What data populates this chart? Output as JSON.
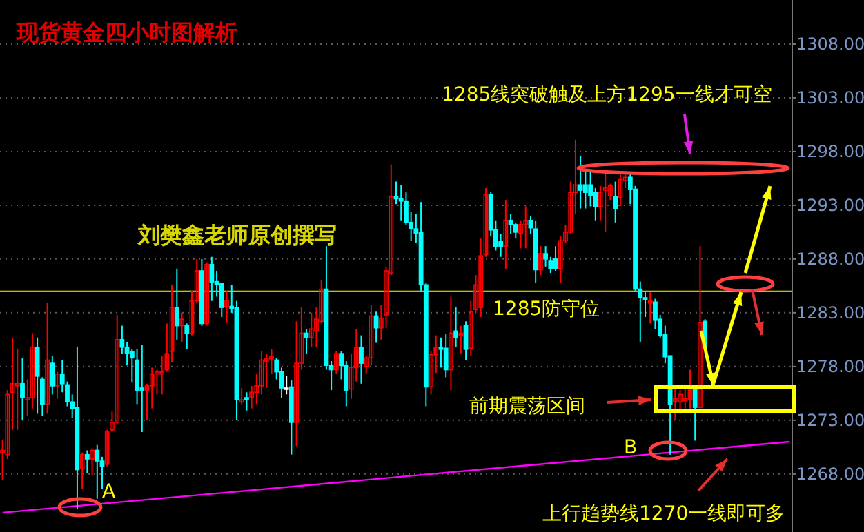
{
  "chart_data": {
    "type": "candlestick",
    "title": "现货黄金四小时图解析",
    "annotations": [
      "刘樊鑫老师原创撰写",
      "1285线突破触及上方1295一线才可空",
      "前期震荡区间",
      "上行趋势线1270一线即可多",
      "A",
      "B"
    ],
    "categories": [
      null,
      null,
      null,
      null,
      null,
      null,
      null,
      null,
      null,
      null,
      null,
      null,
      null,
      null,
      null,
      null,
      null,
      null,
      null,
      null,
      null,
      null,
      null,
      null,
      null,
      null,
      null,
      null,
      null,
      null,
      null,
      null,
      null,
      null,
      null,
      null,
      null,
      null,
      null,
      null,
      null,
      null,
      null,
      null,
      null,
      null,
      null,
      null,
      null,
      null,
      null,
      null,
      null,
      null,
      null,
      null,
      null,
      null,
      null,
      null,
      null,
      null,
      null,
      null,
      null,
      null,
      null,
      null,
      null,
      null,
      null,
      null,
      null,
      null,
      null,
      null,
      null,
      null,
      null,
      null,
      null,
      null,
      null,
      null,
      null,
      null,
      null,
      null,
      null,
      null,
      null,
      null,
      null,
      null,
      null,
      null,
      null,
      null,
      null,
      null,
      null,
      null,
      null,
      null,
      null,
      null,
      null,
      null,
      null,
      null,
      null,
      null,
      null,
      null,
      null,
      null,
      null,
      null,
      null,
      null,
      null,
      null,
      null,
      null,
      null,
      null,
      null,
      null,
      null,
      null,
      null,
      null,
      null,
      null,
      null,
      null,
      null,
      null,
      null,
      null,
      null,
      null,
      null,
      null,
      null,
      null,
      null,
      null,
      null,
      null,
      null,
      null,
      null,
      null,
      null,
      null,
      null,
      null,
      null
    ],
    "ohlc": [
      [
        1270.0,
        1271.2,
        1267.4,
        1270.2
      ],
      [
        1269.8,
        1275.8,
        1269.4,
        1275.4
      ],
      [
        1275.6,
        1280.7,
        1272.1,
        1276.4
      ],
      [
        1276.2,
        1279.6,
        1272.1,
        1276.4
      ],
      [
        1276.4,
        1278.8,
        1273.0,
        1275.1
      ],
      [
        1274.9,
        1276.8,
        1273.4,
        1275.1
      ],
      [
        1275.1,
        1281.1,
        1274.1,
        1279.8
      ],
      [
        1279.8,
        1280.7,
        1273.6,
        1277.1
      ],
      [
        1276.8,
        1277.0,
        1273.4,
        1274.5
      ],
      [
        1274.5,
        1283.9,
        1273.6,
        1278.6
      ],
      [
        1278.3,
        1279.0,
        1275.4,
        1276.2
      ],
      [
        1276.2,
        1277.5,
        1275.0,
        1277.3
      ],
      [
        1277.3,
        1278.6,
        1275.6,
        1276.4
      ],
      [
        1276.3,
        1276.6,
        1274.3,
        1274.7
      ],
      [
        1274.7,
        1275.4,
        1273.2,
        1274.1
      ],
      [
        1274.2,
        1279.8,
        1264.7,
        1268.4
      ],
      [
        1268.5,
        1270.0,
        1266.6,
        1269.8
      ],
      [
        1269.8,
        1270.2,
        1268.1,
        1269.4
      ],
      [
        1269.4,
        1270.4,
        1267.9,
        1270.2
      ],
      [
        1270.2,
        1270.7,
        1265.7,
        1269.2
      ],
      [
        1269.2,
        1269.6,
        1266.6,
        1268.7
      ],
      [
        1268.9,
        1272.1,
        1268.7,
        1271.9
      ],
      [
        1272.1,
        1273.8,
        1271.9,
        1272.8
      ],
      [
        1272.8,
        1282.8,
        1272.6,
        1280.5
      ],
      [
        1280.5,
        1281.8,
        1279.2,
        1279.8
      ],
      [
        1279.8,
        1280.3,
        1278.1,
        1279.2
      ],
      [
        1279.4,
        1279.6,
        1276.5,
        1278.8
      ],
      [
        1278.6,
        1279.6,
        1274.5,
        1275.8
      ],
      [
        1276.0,
        1280.0,
        1271.9,
        1275.8
      ],
      [
        1275.8,
        1276.4,
        1273.0,
        1276.2
      ],
      [
        1276.2,
        1277.9,
        1274.1,
        1277.3
      ],
      [
        1277.3,
        1277.7,
        1275.4,
        1277.5
      ],
      [
        1277.3,
        1279.0,
        1275.4,
        1277.5
      ],
      [
        1277.7,
        1282.0,
        1277.5,
        1279.2
      ],
      [
        1279.4,
        1285.6,
        1278.4,
        1283.5
      ],
      [
        1283.5,
        1287.1,
        1280.5,
        1281.8
      ],
      [
        1281.8,
        1283.0,
        1280.3,
        1282.4
      ],
      [
        1281.8,
        1282.0,
        1279.6,
        1281.1
      ],
      [
        1281.1,
        1285.0,
        1280.9,
        1284.1
      ],
      [
        1284.1,
        1288.0,
        1283.9,
        1286.9
      ],
      [
        1286.9,
        1288.0,
        1281.8,
        1282.0
      ],
      [
        1282.0,
        1287.7,
        1281.8,
        1287.5
      ],
      [
        1287.5,
        1288.2,
        1284.1,
        1285.8
      ],
      [
        1285.9,
        1286.9,
        1284.5,
        1285.6
      ],
      [
        1285.7,
        1285.8,
        1282.6,
        1283.5
      ],
      [
        1283.6,
        1285.0,
        1282.1,
        1284.1
      ],
      [
        1283.6,
        1285.6,
        1283.0,
        1283.4
      ],
      [
        1283.5,
        1284.1,
        1273.0,
        1274.9
      ],
      [
        1274.7,
        1276.0,
        1274.5,
        1274.9
      ],
      [
        1275.1,
        1275.6,
        1273.9,
        1274.9
      ],
      [
        1275.1,
        1276.2,
        1274.1,
        1275.6
      ],
      [
        1275.6,
        1277.3,
        1274.5,
        1276.2
      ],
      [
        1276.2,
        1279.4,
        1275.4,
        1278.6
      ],
      [
        1278.5,
        1279.2,
        1276.0,
        1278.7
      ],
      [
        1278.7,
        1279.6,
        1277.3,
        1278.9
      ],
      [
        1278.6,
        1278.8,
        1276.8,
        1277.5
      ],
      [
        1277.5,
        1277.9,
        1275.1,
        1276.0
      ],
      [
        1276.0,
        1277.1,
        1275.4,
        1276.0
      ],
      [
        1276.1,
        1276.7,
        1269.8,
        1272.8
      ],
      [
        1272.8,
        1282.2,
        1270.6,
        1278.3
      ],
      [
        1278.3,
        1283.5,
        1277.7,
        1281.1
      ],
      [
        1281.1,
        1281.5,
        1279.2,
        1280.7
      ],
      [
        1280.7,
        1283.0,
        1279.8,
        1281.5
      ],
      [
        1281.3,
        1283.5,
        1279.8,
        1282.4
      ],
      [
        1282.2,
        1286.0,
        1282.0,
        1285.2
      ],
      [
        1285.2,
        1289.2,
        1277.7,
        1278.1
      ],
      [
        1278.1,
        1278.5,
        1275.8,
        1277.7
      ],
      [
        1277.7,
        1279.4,
        1277.3,
        1279.2
      ],
      [
        1279.2,
        1279.4,
        1276.8,
        1278.1
      ],
      [
        1278.1,
        1278.5,
        1274.3,
        1275.8
      ],
      [
        1275.9,
        1279.2,
        1275.0,
        1277.9
      ],
      [
        1277.9,
        1281.5,
        1276.6,
        1279.8
      ],
      [
        1279.8,
        1280.9,
        1276.4,
        1278.3
      ],
      [
        1278.0,
        1279.0,
        1277.3,
        1278.8
      ],
      [
        1278.8,
        1283.7,
        1278.1,
        1282.7
      ],
      [
        1282.7,
        1283.1,
        1280.2,
        1281.6
      ],
      [
        1281.6,
        1283.7,
        1280.5,
        1282.5
      ],
      [
        1282.8,
        1287.3,
        1281.6,
        1286.9
      ],
      [
        1286.7,
        1296.8,
        1286.5,
        1293.8
      ],
      [
        1293.8,
        1295.2,
        1293.1,
        1293.6
      ],
      [
        1293.6,
        1294.9,
        1291.6,
        1293.4
      ],
      [
        1293.4,
        1294.2,
        1291.2,
        1291.4
      ],
      [
        1291.4,
        1292.4,
        1289.7,
        1290.8
      ],
      [
        1290.8,
        1292.2,
        1289.5,
        1290.4
      ],
      [
        1290.5,
        1293.3,
        1285.0,
        1285.6
      ],
      [
        1285.6,
        1285.8,
        1274.3,
        1276.1
      ],
      [
        1276.1,
        1279.4,
        1275.4,
        1279.1
      ],
      [
        1279.1,
        1280.9,
        1277.4,
        1279.8
      ],
      [
        1279.8,
        1280.7,
        1277.9,
        1279.6
      ],
      [
        1279.7,
        1281.0,
        1277.0,
        1277.7
      ],
      [
        1277.7,
        1284.5,
        1275.8,
        1281.1
      ],
      [
        1281.3,
        1283.5,
        1279.8,
        1280.7
      ],
      [
        1280.9,
        1281.8,
        1279.2,
        1281.1
      ],
      [
        1281.8,
        1282.2,
        1278.6,
        1279.6
      ],
      [
        1279.7,
        1284.1,
        1279.0,
        1283.1
      ],
      [
        1283.3,
        1286.5,
        1283.0,
        1285.6
      ],
      [
        1283.5,
        1289.9,
        1282.6,
        1288.3
      ],
      [
        1288.4,
        1294.6,
        1288.2,
        1294.0
      ],
      [
        1294.0,
        1294.2,
        1290.1,
        1290.7
      ],
      [
        1290.7,
        1291.6,
        1288.8,
        1289.2
      ],
      [
        1289.6,
        1290.3,
        1288.2,
        1289.2
      ],
      [
        1289.2,
        1293.5,
        1287.1,
        1291.6
      ],
      [
        1291.6,
        1292.2,
        1290.3,
        1291.2
      ],
      [
        1291.2,
        1291.4,
        1289.9,
        1290.5
      ],
      [
        1290.4,
        1291.6,
        1289.0,
        1291.2
      ],
      [
        1291.2,
        1292.9,
        1289.0,
        1291.6
      ],
      [
        1291.6,
        1292.0,
        1290.3,
        1290.9
      ],
      [
        1290.8,
        1291.6,
        1285.8,
        1287.0
      ],
      [
        1287.0,
        1289.2,
        1286.5,
        1288.5
      ],
      [
        1288.5,
        1289.2,
        1287.3,
        1288.0
      ],
      [
        1287.8,
        1288.2,
        1286.7,
        1287.1
      ],
      [
        1288.0,
        1289.2,
        1286.9,
        1287.1
      ],
      [
        1287.1,
        1290.1,
        1285.8,
        1289.7
      ],
      [
        1289.7,
        1291.2,
        1289.5,
        1290.5
      ],
      [
        1290.5,
        1295.2,
        1290.3,
        1294.2
      ],
      [
        1294.2,
        1299.1,
        1292.2,
        1294.9
      ],
      [
        1294.9,
        1297.6,
        1292.7,
        1294.4
      ],
      [
        1294.9,
        1296.1,
        1292.7,
        1294.2
      ],
      [
        1294.9,
        1296.1,
        1292.9,
        1293.9
      ],
      [
        1294.2,
        1294.6,
        1291.6,
        1292.9
      ],
      [
        1292.9,
        1294.8,
        1291.6,
        1294.2
      ],
      [
        1294.4,
        1296.1,
        1290.5,
        1294.6
      ],
      [
        1293.9,
        1295.0,
        1293.5,
        1294.8
      ],
      [
        1293.8,
        1295.2,
        1291.4,
        1292.7
      ],
      [
        1293.7,
        1295.9,
        1292.9,
        1295.4
      ],
      [
        1295.3,
        1295.9,
        1294.6,
        1295.6
      ],
      [
        1295.6,
        1295.9,
        1293.1,
        1294.5
      ],
      [
        1294.5,
        1294.8,
        1285.0,
        1285.2
      ],
      [
        1285.2,
        1285.9,
        1280.3,
        1284.4
      ],
      [
        1284.4,
        1284.9,
        1282.6,
        1284.2
      ],
      [
        1283.9,
        1284.9,
        1282.0,
        1284.1
      ],
      [
        1284.0,
        1284.3,
        1281.5,
        1282.3
      ],
      [
        1282.4,
        1282.8,
        1280.7,
        1280.9
      ],
      [
        1281.0,
        1281.8,
        1278.3,
        1278.9
      ],
      [
        1279.0,
        1279.0,
        1269.8,
        1274.5
      ],
      [
        1274.7,
        1276.0,
        1273.0,
        1275.0
      ],
      [
        1274.7,
        1275.8,
        1273.6,
        1275.4
      ],
      [
        1274.8,
        1276.0,
        1274.1,
        1275.0
      ],
      [
        1274.9,
        1277.7,
        1274.1,
        1275.8
      ],
      [
        1275.9,
        1276.2,
        1271.1,
        1274.2
      ],
      [
        1274.2,
        1289.2,
        1274.1,
        1282.1
      ],
      [
        1282.2,
        1282.4,
        1279.7,
        1279.8
      ],
      null,
      null,
      null,
      null,
      null,
      null,
      null,
      null,
      null,
      null,
      null,
      null,
      null,
      null,
      null,
      null,
      null
    ],
    "series": [
      {
        "type": "line",
        "color": "#ff00ff",
        "values": [
          1264.4,
          null,
          null,
          null,
          null,
          null,
          null,
          null,
          null,
          null,
          null,
          null,
          null,
          null,
          null,
          null,
          null,
          null,
          null,
          null,
          null,
          null,
          null,
          null,
          null,
          null,
          null,
          null,
          null,
          null,
          null,
          null,
          null,
          null,
          null,
          null,
          null,
          null,
          null,
          null,
          null,
          null,
          null,
          null,
          null,
          null,
          null,
          null,
          null,
          null,
          null,
          null,
          null,
          null,
          null,
          null,
          null,
          null,
          null,
          null,
          null,
          null,
          null,
          null,
          null,
          null,
          null,
          null,
          null,
          null,
          null,
          null,
          null,
          null,
          null,
          null,
          null,
          null,
          null,
          null,
          null,
          null,
          null,
          null,
          null,
          null,
          null,
          null,
          null,
          null,
          null,
          null,
          null,
          null,
          null,
          null,
          null,
          null,
          null,
          null,
          null,
          null,
          null,
          null,
          null,
          null,
          null,
          null,
          null,
          null,
          null,
          null,
          null,
          null,
          null,
          null,
          null,
          null,
          null,
          null,
          null,
          null,
          null,
          null,
          null,
          null,
          null,
          null,
          null,
          null,
          null,
          null,
          null,
          null,
          null,
          null,
          null,
          null,
          null,
          null,
          null,
          null,
          null,
          null,
          null,
          null,
          null,
          null,
          null,
          null,
          null,
          null,
          null,
          null,
          null,
          null,
          null,
          null,
          1271.0
        ]
      }
    ],
    "ref_lines": [
      {
        "axis": "y",
        "value": 1285,
        "label": "1285防守位",
        "color": "#ffff00",
        "line_style": "solid"
      }
    ],
    "ylim": [
      1262.6,
      1312.1
    ],
    "yticks": [
      {
        "value": 1268,
        "label": "1268.00"
      },
      {
        "value": 1273,
        "label": "1273.00"
      },
      {
        "value": 1278,
        "label": "1278.00"
      },
      {
        "value": 1283,
        "label": "1283.00"
      },
      {
        "value": 1288,
        "label": "1288.00"
      },
      {
        "value": 1293,
        "label": "1293.00"
      },
      {
        "value": 1298,
        "label": "1298.00"
      },
      {
        "value": 1303,
        "label": "1303.00"
      },
      {
        "value": 1308,
        "label": "1308.00"
      }
    ],
    "grid": "y",
    "tick_labels": "y"
  }
}
